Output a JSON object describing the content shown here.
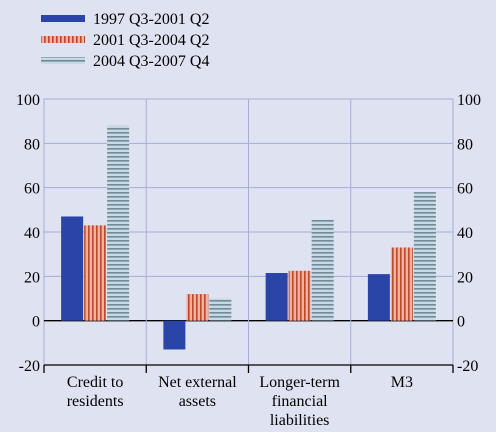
{
  "chart_data": {
    "type": "bar",
    "categories": [
      [
        "Credit to",
        "residents"
      ],
      [
        "Net external",
        "assets"
      ],
      [
        "Longer-term",
        "financial",
        "liabilities"
      ],
      [
        "M3"
      ]
    ],
    "series": [
      {
        "name": "1997 Q3-2001 Q2",
        "values": [
          47,
          -13,
          21.5,
          21
        ],
        "color": "#2b44a8",
        "pattern": "solid"
      },
      {
        "name": "2001 Q3-2004 Q2",
        "values": [
          43,
          12,
          22.5,
          33
        ],
        "color": "#f2b0a0",
        "pattern": "vertical-stripes",
        "stripe_color": "#b84a2e"
      },
      {
        "name": "2004 Q3-2007 Q4",
        "values": [
          88,
          10,
          45.5,
          58
        ],
        "color": "#c9d9e3",
        "pattern": "horizontal-stripes",
        "stripe_color": "#6f8a99"
      }
    ],
    "ylim": [
      -20,
      100
    ],
    "yticks": [
      -20,
      0,
      20,
      40,
      60,
      80,
      100
    ],
    "grid": true,
    "legend_position": "top-left",
    "title": "",
    "xlabel": "",
    "ylabel": ""
  }
}
